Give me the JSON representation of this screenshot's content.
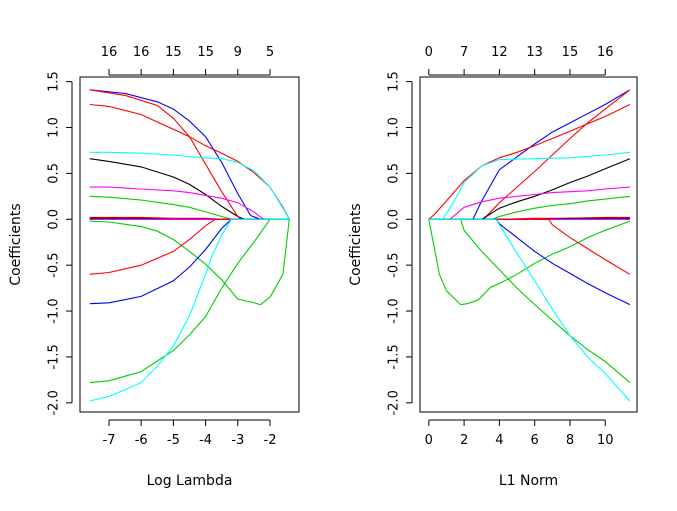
{
  "chart_data": [
    {
      "type": "line",
      "xlabel": "Log Lambda",
      "ylabel": "Coefficients",
      "xlim": [
        -7.9,
        -1.1
      ],
      "ylim": [
        -2.1,
        1.55
      ],
      "xticks": [
        -7,
        -6,
        -5,
        -4,
        -3,
        -2
      ],
      "xtick_labels": [
        "-7",
        "-6",
        "-5",
        "-4",
        "-3",
        "-2"
      ],
      "yticks": [
        -2.0,
        -1.5,
        -1.0,
        -0.5,
        0.0,
        0.5,
        1.0,
        1.5
      ],
      "ytick_labels": [
        "-2.0",
        "-1.5",
        "-1.0",
        "-0.5",
        "0.0",
        "0.5",
        "1.0",
        "1.5"
      ],
      "top_ticks": [
        -7.0,
        -6.0,
        -5.0,
        -4.0,
        -3.0,
        -2.0
      ],
      "top_labels": [
        "16",
        "16",
        "15",
        "15",
        "9",
        "5"
      ],
      "series": [
        {
          "color": "#0000ff",
          "x": [
            -7.6,
            -6.5,
            -5.5,
            -5.0,
            -4.5,
            -4.0,
            -3.5,
            -3.0,
            -2.6,
            -2.3,
            -1.4
          ],
          "y": [
            1.41,
            1.37,
            1.28,
            1.2,
            1.07,
            0.9,
            0.62,
            0.28,
            0.04,
            0.0,
            0.0
          ]
        },
        {
          "color": "#000000",
          "x": [
            -7.6,
            -7.0,
            -6.0,
            -5.0,
            -4.5,
            -4.0,
            -3.5,
            -3.0,
            -2.8,
            -1.4
          ],
          "y": [
            0.66,
            0.63,
            0.57,
            0.46,
            0.38,
            0.27,
            0.14,
            0.03,
            0.0,
            0.0
          ]
        },
        {
          "color": "#ff0000",
          "x": [
            -7.6,
            -6.5,
            -5.5,
            -5.0,
            -4.5,
            -4.0,
            -3.5,
            -3.0,
            -2.9,
            -1.4
          ],
          "y": [
            1.41,
            1.35,
            1.24,
            1.1,
            0.9,
            0.6,
            0.3,
            0.03,
            0.0,
            0.0
          ]
        },
        {
          "color": "#ff0000",
          "x": [
            -7.6,
            -7.0,
            -6.0,
            -5.0,
            -4.5,
            -4.0,
            -3.5,
            -3.0,
            -2.5,
            -2.0,
            -1.6,
            -1.4
          ],
          "y": [
            1.25,
            1.23,
            1.14,
            0.98,
            0.9,
            0.8,
            0.72,
            0.63,
            0.51,
            0.35,
            0.13,
            0.0
          ]
        },
        {
          "color": "#00ffff",
          "x": [
            -7.6,
            -7.0,
            -6.0,
            -5.0,
            -4.5,
            -4.0,
            -3.5,
            -3.0,
            -2.5,
            -2.0,
            -1.6,
            -1.4
          ],
          "y": [
            0.73,
            0.73,
            0.72,
            0.7,
            0.68,
            0.67,
            0.66,
            0.62,
            0.53,
            0.35,
            0.12,
            0.0
          ]
        },
        {
          "color": "#ff00ff",
          "x": [
            -7.6,
            -7.0,
            -6.0,
            -5.0,
            -4.5,
            -4.0,
            -3.5,
            -3.0,
            -2.5,
            -2.2,
            -1.4
          ],
          "y": [
            0.35,
            0.35,
            0.33,
            0.31,
            0.29,
            0.26,
            0.23,
            0.18,
            0.08,
            0.0,
            0.0
          ]
        },
        {
          "color": "#00cd00",
          "x": [
            -7.6,
            -7.0,
            -6.0,
            -5.0,
            -4.5,
            -4.0,
            -3.5,
            -3.2,
            -3.1,
            -1.4
          ],
          "y": [
            0.25,
            0.24,
            0.21,
            0.16,
            0.13,
            0.08,
            0.03,
            0.0,
            0.0,
            0.0
          ]
        },
        {
          "color": "#ff0000",
          "x": [
            -7.6,
            -7.0,
            -6.0,
            -5.0,
            -4.5,
            -4.0,
            -3.5,
            -3.1,
            -1.4
          ],
          "y": [
            0.02,
            0.02,
            0.02,
            0.01,
            0.01,
            0.01,
            0.0,
            0.0,
            0.0
          ]
        },
        {
          "color": "#000000",
          "x": [
            -7.6,
            -7.0,
            -6.0,
            -5.0,
            -4.0,
            -3.0,
            -1.4
          ],
          "y": [
            0.01,
            0.01,
            0.01,
            0.0,
            0.0,
            0.0,
            0.0
          ]
        },
        {
          "color": "#0000ff",
          "x": [
            -7.6,
            -7.0,
            -6.0,
            -5.0,
            -4.0,
            -3.0,
            -1.4
          ],
          "y": [
            0.0,
            0.0,
            0.0,
            0.0,
            0.0,
            0.0,
            0.0
          ]
        },
        {
          "color": "#ff00ff",
          "x": [
            -7.6,
            -7.0,
            -6.0,
            -5.0,
            -4.0,
            -3.0,
            -1.4
          ],
          "y": [
            0.0,
            0.0,
            0.0,
            0.0,
            0.0,
            0.0,
            0.0
          ]
        },
        {
          "color": "#00cd00",
          "x": [
            -7.6,
            -7.0,
            -6.0,
            -5.5,
            -5.0,
            -4.5,
            -4.0,
            -3.5,
            -3.0,
            -2.6,
            -2.3,
            -2.0,
            -1.6,
            -1.4
          ],
          "y": [
            -0.02,
            -0.03,
            -0.08,
            -0.13,
            -0.22,
            -0.35,
            -0.49,
            -0.66,
            -0.87,
            -0.9,
            -0.93,
            -0.85,
            -0.6,
            0.0
          ]
        },
        {
          "color": "#ff0000",
          "x": [
            -7.6,
            -7.0,
            -6.0,
            -5.0,
            -4.5,
            -4.0,
            -3.7,
            -3.5,
            -1.4
          ],
          "y": [
            -0.6,
            -0.58,
            -0.5,
            -0.35,
            -0.22,
            -0.07,
            0.0,
            0.0,
            0.0
          ]
        },
        {
          "color": "#0000ff",
          "x": [
            -7.6,
            -7.0,
            -6.0,
            -5.0,
            -4.5,
            -4.0,
            -3.5,
            -3.2,
            -1.4
          ],
          "y": [
            -0.92,
            -0.91,
            -0.84,
            -0.67,
            -0.52,
            -0.33,
            -0.1,
            0.0,
            0.0
          ]
        },
        {
          "color": "#00cd00",
          "x": [
            -7.6,
            -7.0,
            -6.0,
            -5.0,
            -4.5,
            -4.0,
            -3.5,
            -3.0,
            -2.5,
            -2.0,
            -1.4
          ],
          "y": [
            -1.78,
            -1.76,
            -1.66,
            -1.43,
            -1.26,
            -1.06,
            -0.75,
            -0.48,
            -0.25,
            0.0,
            0.0
          ]
        },
        {
          "color": "#00ffff",
          "x": [
            -7.6,
            -7.0,
            -6.0,
            -5.5,
            -5.0,
            -4.5,
            -4.0,
            -3.8,
            -3.5,
            -3.2,
            -3.0,
            -1.4
          ],
          "y": [
            -1.98,
            -1.93,
            -1.78,
            -1.6,
            -1.38,
            -1.05,
            -0.6,
            -0.4,
            -0.17,
            0.0,
            0.0,
            0.0
          ]
        }
      ]
    },
    {
      "type": "line",
      "xlabel": "L1 Norm",
      "ylabel": "Coefficients",
      "xlim": [
        -0.5,
        11.8
      ],
      "ylim": [
        -2.1,
        1.55
      ],
      "xticks": [
        0,
        2,
        4,
        6,
        8,
        10
      ],
      "xtick_labels": [
        "0",
        "2",
        "4",
        "6",
        "8",
        "10"
      ],
      "yticks": [
        -2.0,
        -1.5,
        -1.0,
        -0.5,
        0.0,
        0.5,
        1.0,
        1.5
      ],
      "ytick_labels": [
        "-2.0",
        "-1.5",
        "-1.0",
        "-0.5",
        "0.0",
        "0.5",
        "1.0",
        "1.5"
      ],
      "top_ticks": [
        0.0,
        2.0,
        4.0,
        6.0,
        8.0,
        10.0
      ],
      "top_labels": [
        "0",
        "7",
        "12",
        "13",
        "15",
        "16"
      ],
      "series": [
        {
          "color": "#0000ff",
          "x": [
            0.0,
            2.5,
            3.0,
            4.0,
            5.0,
            6.0,
            7.0,
            8.0,
            9.0,
            10.0,
            11.4
          ],
          "y": [
            0.0,
            0.0,
            0.2,
            0.54,
            0.68,
            0.82,
            0.95,
            1.05,
            1.15,
            1.25,
            1.41
          ]
        },
        {
          "color": "#ff0000",
          "x": [
            0.0,
            3.1,
            4.0,
            5.0,
            6.0,
            7.0,
            8.0,
            9.0,
            10.0,
            11.4
          ],
          "y": [
            0.0,
            0.0,
            0.18,
            0.35,
            0.52,
            0.7,
            0.88,
            1.05,
            1.2,
            1.41
          ]
        },
        {
          "color": "#ff0000",
          "x": [
            0.0,
            0.3,
            1.0,
            2.0,
            3.0,
            4.0,
            5.0,
            6.0,
            7.0,
            8.0,
            9.0,
            10.0,
            11.4
          ],
          "y": [
            0.0,
            0.05,
            0.2,
            0.42,
            0.58,
            0.67,
            0.73,
            0.8,
            0.88,
            0.96,
            1.04,
            1.12,
            1.25
          ]
        },
        {
          "color": "#00ffff",
          "x": [
            0.0,
            0.8,
            1.5,
            2.0,
            3.0,
            4.0,
            6.0,
            8.0,
            10.0,
            11.4
          ],
          "y": [
            0.0,
            0.0,
            0.22,
            0.4,
            0.58,
            0.65,
            0.66,
            0.67,
            0.7,
            0.73
          ]
        },
        {
          "color": "#000000",
          "x": [
            0.0,
            3.0,
            4.0,
            5.0,
            6.0,
            7.0,
            8.0,
            9.0,
            10.0,
            11.4
          ],
          "y": [
            0.0,
            0.0,
            0.12,
            0.19,
            0.25,
            0.32,
            0.4,
            0.47,
            0.55,
            0.66
          ]
        },
        {
          "color": "#ff00ff",
          "x": [
            0.0,
            1.2,
            2.0,
            3.0,
            4.0,
            5.0,
            6.0,
            7.0,
            8.0,
            9.0,
            10.0,
            11.4
          ],
          "y": [
            0.0,
            0.0,
            0.13,
            0.19,
            0.23,
            0.25,
            0.27,
            0.29,
            0.3,
            0.31,
            0.33,
            0.35
          ]
        },
        {
          "color": "#00cd00",
          "x": [
            0.0,
            3.6,
            4.0,
            5.0,
            6.0,
            7.0,
            8.0,
            9.0,
            10.0,
            11.4
          ],
          "y": [
            0.0,
            0.0,
            0.03,
            0.08,
            0.12,
            0.15,
            0.17,
            0.2,
            0.22,
            0.25
          ]
        },
        {
          "color": "#ff0000",
          "x": [
            0.0,
            4.0,
            6.0,
            8.0,
            10.0,
            11.4
          ],
          "y": [
            0.0,
            0.0,
            0.01,
            0.01,
            0.02,
            0.02
          ]
        },
        {
          "color": "#000000",
          "x": [
            0.0,
            4.0,
            6.0,
            8.0,
            10.0,
            11.4
          ],
          "y": [
            0.0,
            0.0,
            0.0,
            0.01,
            0.01,
            0.01
          ]
        },
        {
          "color": "#0000ff",
          "x": [
            0.0,
            4.0,
            6.0,
            8.0,
            10.0,
            11.4
          ],
          "y": [
            0.0,
            0.0,
            0.0,
            0.0,
            0.0,
            0.0
          ]
        },
        {
          "color": "#ff00ff",
          "x": [
            0.0,
            4.0,
            6.0,
            8.0,
            10.0,
            11.4
          ],
          "y": [
            0.0,
            0.0,
            0.0,
            0.0,
            0.0,
            0.0
          ]
        },
        {
          "color": "#00cd00",
          "x": [
            0.0,
            0.6,
            1.0,
            1.8,
            2.2,
            2.8,
            3.5,
            4.0,
            5.0,
            6.0,
            7.0,
            8.0,
            9.0,
            10.0,
            11.4
          ],
          "y": [
            0.0,
            -0.6,
            -0.78,
            -0.93,
            -0.92,
            -0.88,
            -0.74,
            -0.7,
            -0.6,
            -0.48,
            -0.38,
            -0.3,
            -0.2,
            -0.12,
            -0.02
          ]
        },
        {
          "color": "#ff0000",
          "x": [
            0.0,
            6.8,
            7.0,
            8.0,
            9.0,
            10.0,
            11.4
          ],
          "y": [
            0.0,
            0.0,
            -0.06,
            -0.2,
            -0.32,
            -0.44,
            -0.6
          ]
        },
        {
          "color": "#0000ff",
          "x": [
            0.0,
            3.8,
            4.0,
            5.0,
            6.0,
            7.0,
            8.0,
            9.0,
            10.0,
            11.4
          ],
          "y": [
            0.0,
            0.0,
            -0.05,
            -0.2,
            -0.35,
            -0.48,
            -0.59,
            -0.7,
            -0.8,
            -0.93
          ]
        },
        {
          "color": "#00cd00",
          "x": [
            0.0,
            1.8,
            2.0,
            3.0,
            4.0,
            5.0,
            6.0,
            7.0,
            8.0,
            9.0,
            10.0,
            11.4
          ],
          "y": [
            0.0,
            0.0,
            -0.12,
            -0.35,
            -0.55,
            -0.75,
            -0.93,
            -1.1,
            -1.27,
            -1.42,
            -1.55,
            -1.78
          ]
        },
        {
          "color": "#00ffff",
          "x": [
            0.0,
            3.8,
            4.0,
            5.0,
            6.0,
            7.0,
            8.0,
            9.0,
            10.0,
            11.4
          ],
          "y": [
            0.0,
            0.0,
            -0.06,
            -0.37,
            -0.67,
            -0.98,
            -1.27,
            -1.5,
            -1.68,
            -1.98
          ]
        }
      ]
    }
  ]
}
